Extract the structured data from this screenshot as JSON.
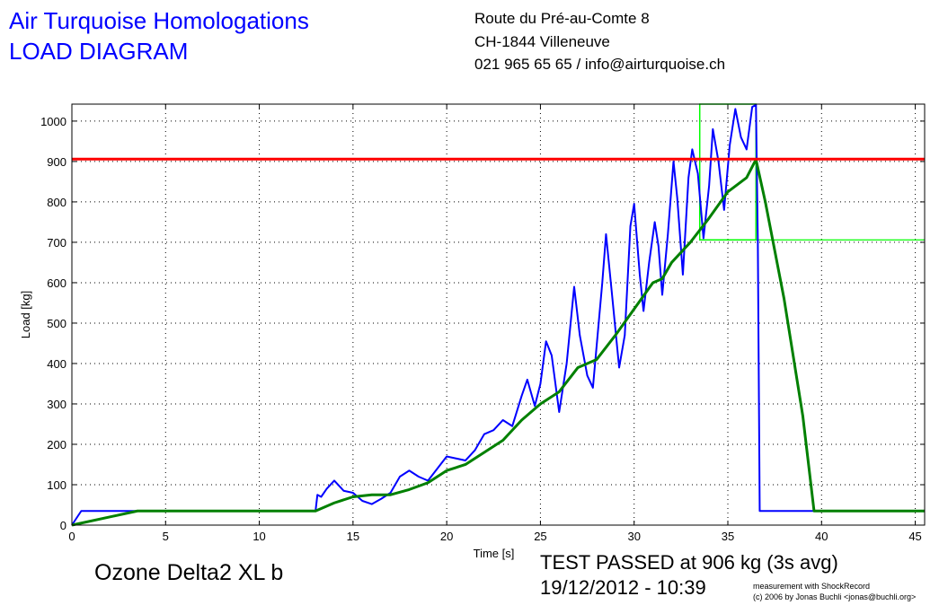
{
  "header": {
    "title": "Air Turquoise Homologations",
    "subtitle": "LOAD DIAGRAM",
    "address": [
      "Route du Pré-au-Comte 8",
      "CH-1844 Villeneuve",
      "021 965 65 65 / info@airturquoise.ch"
    ]
  },
  "footer": {
    "model": "Ozone Delta2 XL b",
    "result": "TEST PASSED at 906 kg (3s avg)",
    "datetime": "19/12/2012 - 10:39",
    "credit1": "measurement with ShockRecord",
    "credit2": "(c) 2006 by Jonas Buchli <jonas@buchli.org>"
  },
  "chart_data": {
    "type": "line",
    "xlabel": "Time [s]",
    "ylabel": "Load [kg]",
    "xlim": [
      0,
      45.5
    ],
    "ylim": [
      0,
      1042
    ],
    "xticks": [
      0,
      5,
      10,
      15,
      20,
      25,
      30,
      35,
      40,
      45
    ],
    "yticks": [
      0,
      100,
      200,
      300,
      400,
      500,
      600,
      700,
      800,
      900,
      1000
    ],
    "grid": true,
    "threshold": {
      "value": 906,
      "color": "#ff0000"
    },
    "window": {
      "x": [
        33.5,
        36.5
      ],
      "y": [
        706,
        1042
      ],
      "color": "#00ff00"
    },
    "series": [
      {
        "name": "load",
        "color": "#0000ff",
        "points": [
          [
            0,
            0
          ],
          [
            0.5,
            35
          ],
          [
            3.5,
            35
          ],
          [
            13,
            35
          ],
          [
            13.1,
            75
          ],
          [
            13.3,
            70
          ],
          [
            13.6,
            90
          ],
          [
            14,
            110
          ],
          [
            14.5,
            85
          ],
          [
            15,
            80
          ],
          [
            15.5,
            60
          ],
          [
            16,
            52
          ],
          [
            16.5,
            65
          ],
          [
            17,
            80
          ],
          [
            17.5,
            120
          ],
          [
            18,
            135
          ],
          [
            18.5,
            120
          ],
          [
            19,
            110
          ],
          [
            19.5,
            140
          ],
          [
            20,
            170
          ],
          [
            20.5,
            165
          ],
          [
            21,
            160
          ],
          [
            21.5,
            185
          ],
          [
            22,
            225
          ],
          [
            22.5,
            235
          ],
          [
            23,
            260
          ],
          [
            23.5,
            245
          ],
          [
            24,
            320
          ],
          [
            24.3,
            360
          ],
          [
            24.7,
            295
          ],
          [
            25,
            350
          ],
          [
            25.3,
            455
          ],
          [
            25.6,
            420
          ],
          [
            26,
            280
          ],
          [
            26.4,
            400
          ],
          [
            26.8,
            590
          ],
          [
            27.1,
            470
          ],
          [
            27.5,
            370
          ],
          [
            27.8,
            340
          ],
          [
            28.3,
            600
          ],
          [
            28.5,
            720
          ],
          [
            28.8,
            580
          ],
          [
            29.2,
            390
          ],
          [
            29.5,
            470
          ],
          [
            29.8,
            740
          ],
          [
            30,
            795
          ],
          [
            30.3,
            620
          ],
          [
            30.5,
            530
          ],
          [
            30.8,
            650
          ],
          [
            31.1,
            750
          ],
          [
            31.3,
            690
          ],
          [
            31.5,
            570
          ],
          [
            31.8,
            720
          ],
          [
            32.1,
            900
          ],
          [
            32.3,
            810
          ],
          [
            32.6,
            620
          ],
          [
            32.9,
            860
          ],
          [
            33.1,
            930
          ],
          [
            33.4,
            870
          ],
          [
            33.7,
            710
          ],
          [
            34,
            840
          ],
          [
            34.2,
            980
          ],
          [
            34.5,
            900
          ],
          [
            34.8,
            780
          ],
          [
            35.1,
            940
          ],
          [
            35.4,
            1030
          ],
          [
            35.7,
            960
          ],
          [
            36,
            930
          ],
          [
            36.3,
            1035
          ],
          [
            36.5,
            1040
          ],
          [
            36.6,
            700
          ],
          [
            36.7,
            35
          ],
          [
            45.5,
            35
          ]
        ]
      },
      {
        "name": "3s avg",
        "color": "#008000",
        "points": [
          [
            0,
            0
          ],
          [
            3.5,
            35
          ],
          [
            13,
            35
          ],
          [
            14,
            55
          ],
          [
            15,
            70
          ],
          [
            16,
            75
          ],
          [
            17,
            75
          ],
          [
            18,
            88
          ],
          [
            19,
            105
          ],
          [
            20,
            135
          ],
          [
            21,
            150
          ],
          [
            22,
            180
          ],
          [
            23,
            210
          ],
          [
            24,
            260
          ],
          [
            25,
            300
          ],
          [
            26,
            330
          ],
          [
            27,
            390
          ],
          [
            28,
            410
          ],
          [
            29,
            470
          ],
          [
            30,
            535
          ],
          [
            31,
            600
          ],
          [
            31.5,
            610
          ],
          [
            32,
            650
          ],
          [
            33,
            700
          ],
          [
            34,
            760
          ],
          [
            35,
            825
          ],
          [
            36,
            860
          ],
          [
            36.5,
            905
          ],
          [
            37,
            800
          ],
          [
            38,
            560
          ],
          [
            39,
            270
          ],
          [
            39.6,
            35
          ],
          [
            45.5,
            35
          ]
        ]
      }
    ]
  }
}
